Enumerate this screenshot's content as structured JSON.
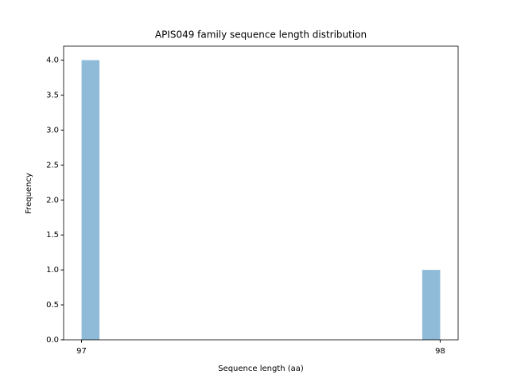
{
  "chart_data": {
    "type": "histogram",
    "title": "APIS049 family sequence length distribution",
    "x_label": "Sequence length (aa)",
    "y_label": "Frequency",
    "bins": [
      97,
      97.05,
      97.1,
      97.15,
      97.2,
      97.25,
      97.3,
      97.35,
      97.4,
      97.45,
      97.5,
      97.55,
      97.6,
      97.65,
      97.7,
      97.75,
      97.8,
      97.85,
      97.9,
      97.95,
      98
    ],
    "values": [
      4,
      0,
      0,
      0,
      0,
      0,
      0,
      0,
      0,
      0,
      0,
      0,
      0,
      0,
      0,
      0,
      0,
      0,
      0,
      1
    ],
    "color": "#1f77b4",
    "alpha": 0.5,
    "xlim": [
      96.95,
      98.05
    ],
    "xticks": [
      97,
      98
    ],
    "ylim": [
      0,
      4.2
    ],
    "yticks": [
      {
        "value": 0,
        "label": "0.0"
      },
      {
        "value": 0.5,
        "label": "0.5"
      },
      {
        "value": 1,
        "label": "1.0"
      },
      {
        "value": 1.5,
        "label": "1.5"
      },
      {
        "value": 2,
        "label": "2.0"
      },
      {
        "value": 2.5,
        "label": "2.5"
      },
      {
        "value": 3,
        "label": "3.0"
      },
      {
        "value": 3.5,
        "label": "3.5"
      },
      {
        "value": 4,
        "label": "4.0"
      }
    ],
    "grid": false
  }
}
